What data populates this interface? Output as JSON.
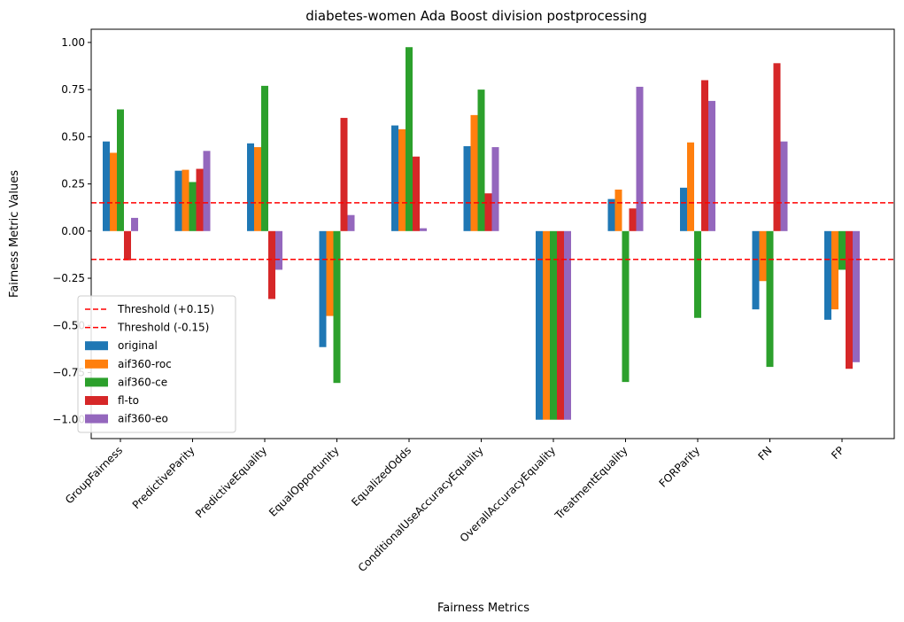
{
  "chart_data": {
    "type": "bar",
    "title": "diabetes-women Ada Boost division postprocessing",
    "xlabel": "Fairness Metrics",
    "ylabel": "Fairness Metric Values",
    "ylim": [
      -1.1,
      1.07
    ],
    "yticks": [
      -1.0,
      -0.75,
      -0.5,
      -0.25,
      0.0,
      0.25,
      0.5,
      0.75,
      1.0
    ],
    "ytick_labels": [
      "−1.00",
      "−0.75",
      "−0.50",
      "−0.25",
      "0.00",
      "0.25",
      "0.50",
      "0.75",
      "1.00"
    ],
    "grid": false,
    "legend_position": "lower-left",
    "categories": [
      "GroupFairness",
      "PredictiveParity",
      "PredictiveEquality",
      "EqualOpportunity",
      "EqualizedOdds",
      "ConditionalUseAccuracyEquality",
      "OverallAccuracyEquality",
      "TreatmentEquality",
      "FORParity",
      "FN",
      "FP"
    ],
    "series": [
      {
        "name": "original",
        "color": "#1f77b4",
        "values": [
          0.475,
          0.32,
          0.465,
          -0.615,
          0.56,
          0.45,
          -1.0,
          0.17,
          0.23,
          -0.415,
          -0.47
        ]
      },
      {
        "name": "aif360-roc",
        "color": "#ff7f0e",
        "values": [
          0.415,
          0.325,
          0.445,
          -0.45,
          0.54,
          0.615,
          -1.0,
          0.22,
          0.47,
          -0.265,
          -0.415
        ]
      },
      {
        "name": "aif360-ce",
        "color": "#2ca02c",
        "values": [
          0.645,
          0.26,
          0.77,
          -0.805,
          0.975,
          0.75,
          -1.0,
          -0.8,
          -0.46,
          -0.72,
          -0.205
        ]
      },
      {
        "name": "fl-to",
        "color": "#d62728",
        "values": [
          -0.155,
          0.33,
          -0.36,
          0.6,
          0.395,
          0.2,
          -1.0,
          0.12,
          0.8,
          0.89,
          -0.73
        ]
      },
      {
        "name": "aif360-eo",
        "color": "#9467bd",
        "values": [
          0.07,
          0.425,
          -0.205,
          0.085,
          0.015,
          0.445,
          -1.0,
          0.765,
          0.69,
          0.475,
          -0.695
        ]
      }
    ],
    "thresholds": [
      {
        "name": "Threshold (+0.15)",
        "value": 0.15,
        "color": "#ff0000"
      },
      {
        "name": "Threshold (-0.15)",
        "value": -0.15,
        "color": "#ff0000"
      }
    ]
  }
}
